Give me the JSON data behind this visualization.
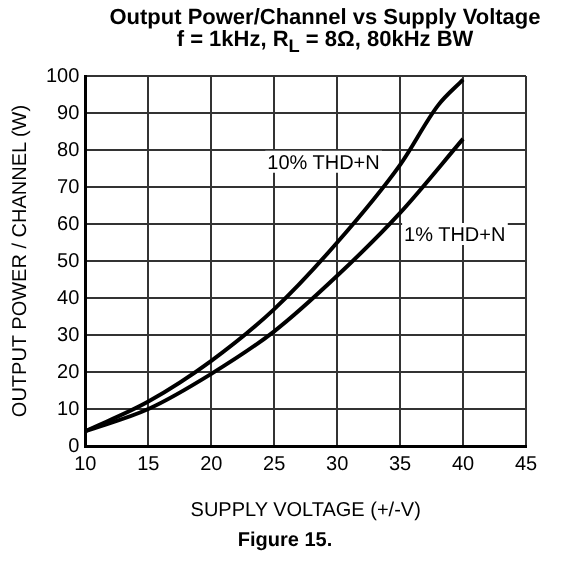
{
  "chart_data": {
    "type": "line",
    "title": "Output Power/Channel vs Supply Voltage",
    "subtitle": "f = 1kHz, R$_{L}$ = 8Ω, 80kHz BW",
    "xlabel": "SUPPLY VOLTAGE (+/-V)",
    "ylabel": "OUTPUT POWER / CHANNEL (W)",
    "annotations": [
      "Figure 15."
    ],
    "x": [
      10,
      15,
      20,
      25,
      30,
      35,
      38,
      40
    ],
    "series": [
      {
        "name": "10% THD+N",
        "color": "#000000",
        "values": [
          4,
          12,
          23,
          37,
          55,
          76,
          92,
          99
        ]
      },
      {
        "name": "1% THD+N",
        "color": "#000000",
        "x": [
          10,
          15,
          20,
          25,
          30,
          35,
          40
        ],
        "values": [
          4,
          10,
          19.5,
          31,
          46,
          63,
          83
        ]
      }
    ],
    "xlim": [
      10,
      45
    ],
    "xticks": [
      10,
      15,
      20,
      25,
      30,
      35,
      40,
      45
    ],
    "ylim": [
      0,
      100
    ],
    "yticks": [
      0,
      10,
      20,
      30,
      40,
      50,
      60,
      70,
      80,
      90,
      100
    ],
    "grid": true,
    "legend": false,
    "marker": "none",
    "line_style": "solid"
  }
}
